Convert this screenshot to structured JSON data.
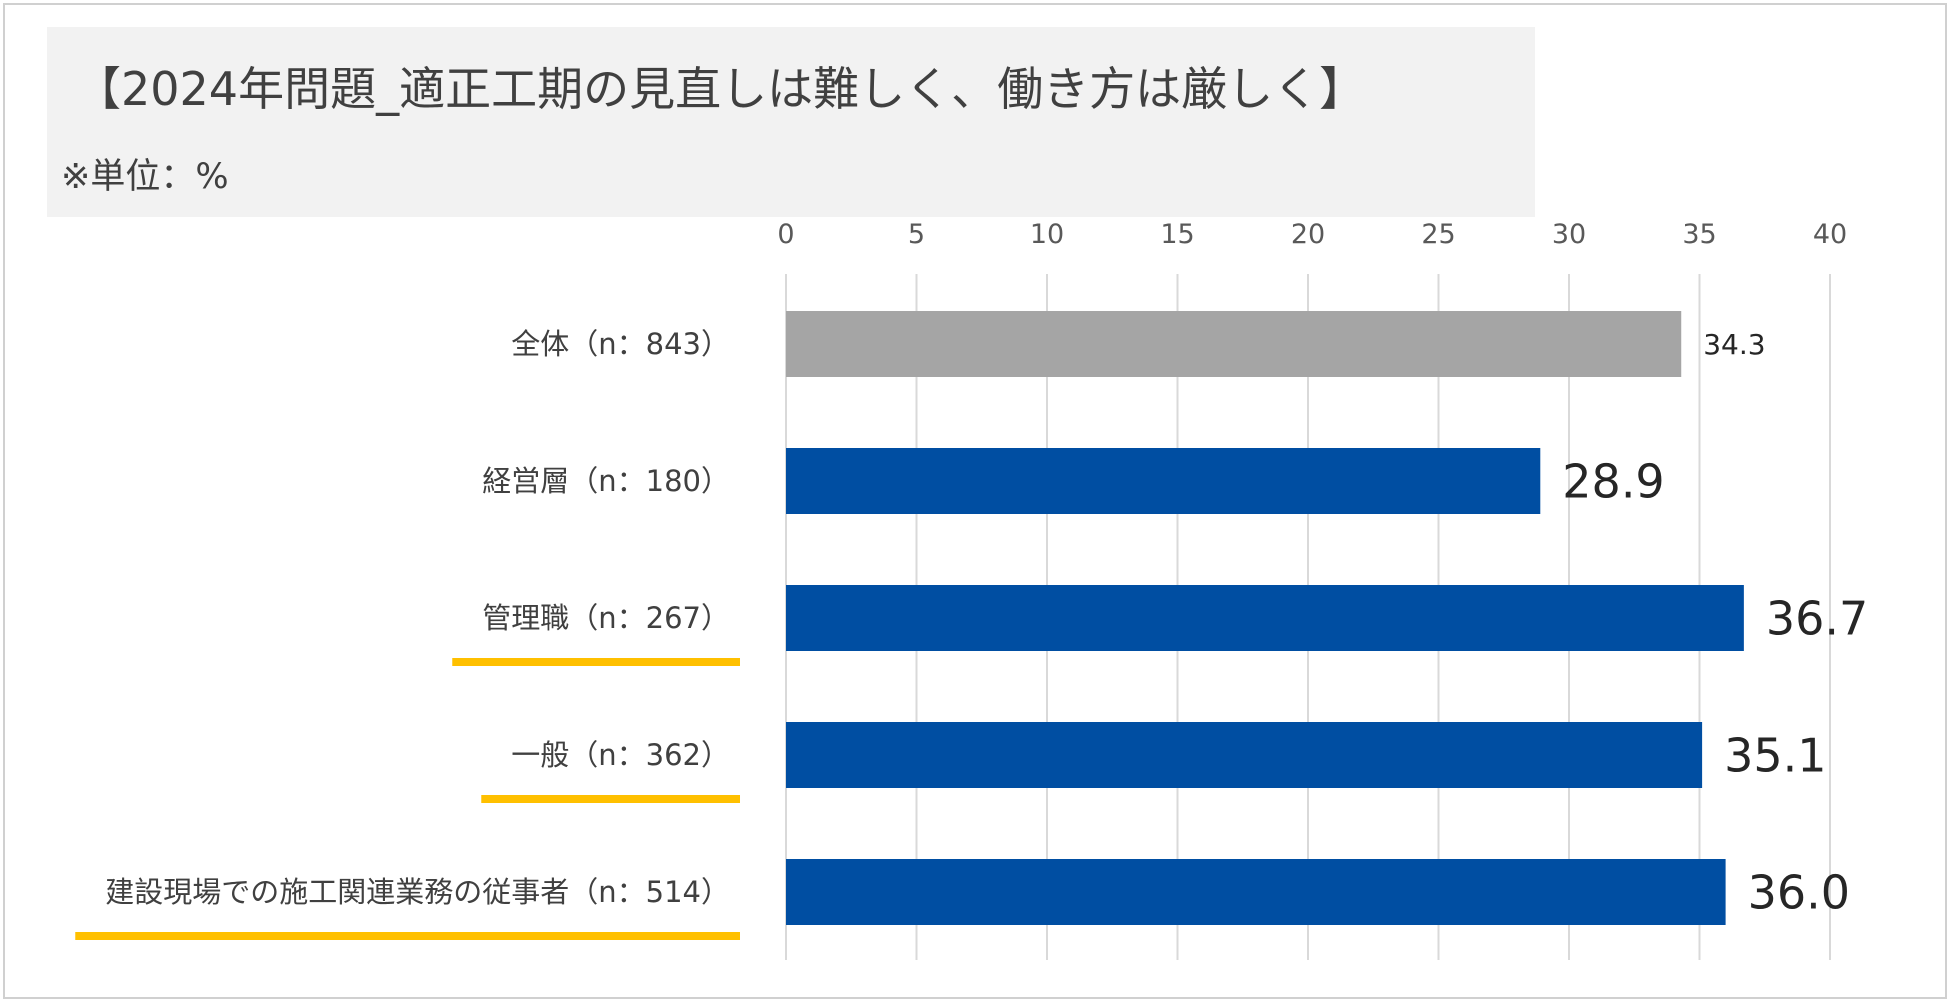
{
  "chart_data": {
    "type": "bar",
    "orientation": "horizontal",
    "title": "【2024年問題_適正工期の見直しは難しく、働き方は厳しく】",
    "unit_note": "※単位：%",
    "categories": [
      "全体（n：843）",
      "経営層（n：180）",
      "管理職（n：267）",
      "一般（n：362）",
      "建設現場での施工関連業務の従事者（n：514）"
    ],
    "values": [
      34.3,
      28.9,
      36.7,
      35.1,
      36.0
    ],
    "value_labels": [
      "34.3",
      "28.9",
      "36.7",
      "35.1",
      "36.0"
    ],
    "bar_colors": [
      "#a5a5a5",
      "#004ea2",
      "#004ea2",
      "#004ea2",
      "#004ea2"
    ],
    "underlined_categories": [
      2,
      3,
      4
    ],
    "underline_color": "#ffc000",
    "xlim": [
      0,
      40
    ],
    "xticks": [
      0,
      5,
      10,
      15,
      20,
      25,
      30,
      35,
      40
    ],
    "x_axis_position": "top",
    "grid": true,
    "gridline_color": "#d9d9d9"
  }
}
